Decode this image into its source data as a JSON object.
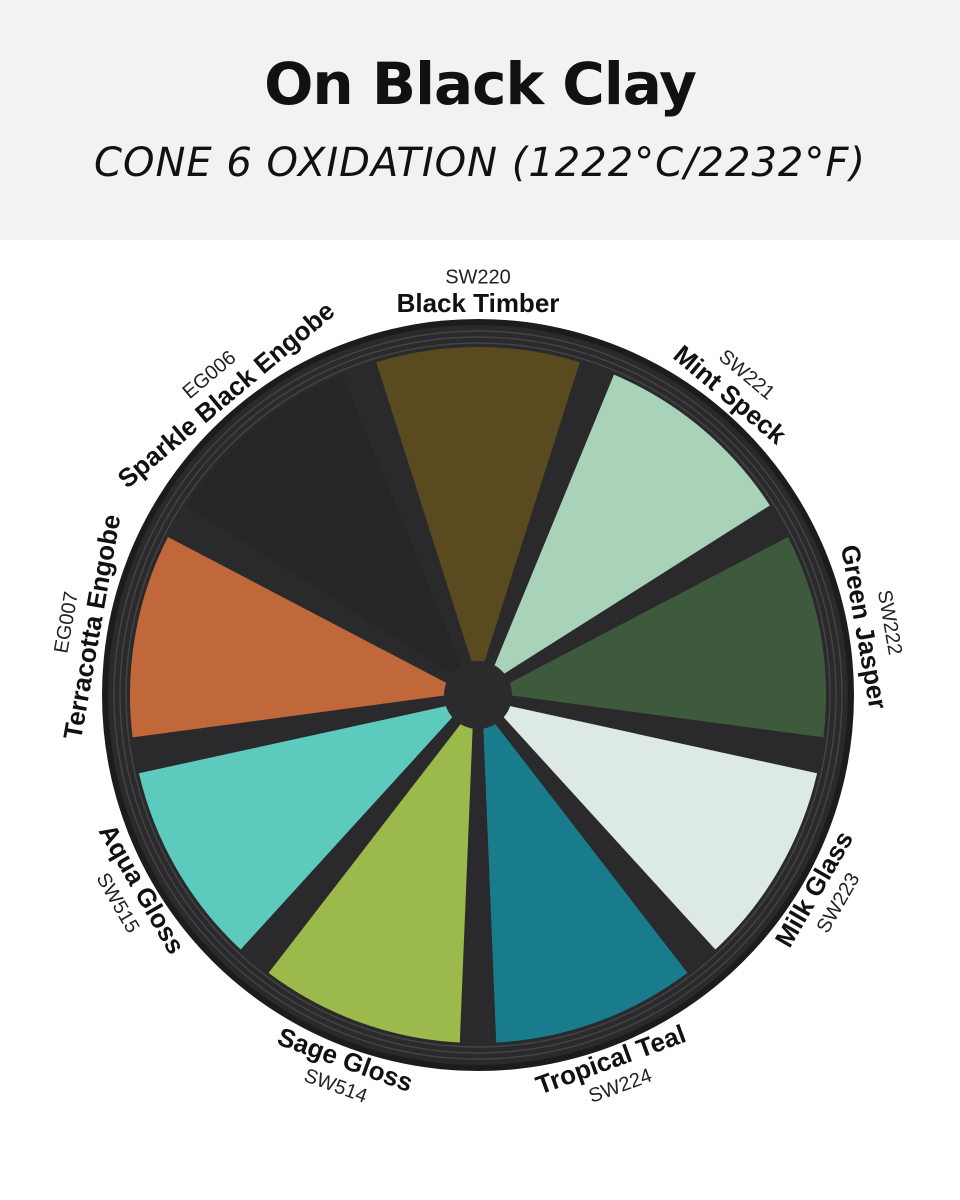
{
  "header": {
    "title": "On Black Clay",
    "subtitle": "CONE 6 OXIDATION (1222°C/2232°F)"
  },
  "plate": {
    "rim_color": "#2a2a2c",
    "glazes": [
      {
        "name": "Black Timber",
        "code": "SW220",
        "color": "#5a4a20"
      },
      {
        "name": "Mint Speck",
        "code": "SW221",
        "color": "#a9d3b9"
      },
      {
        "name": "Green Jasper",
        "code": "SW222",
        "color": "#3e5a3c"
      },
      {
        "name": "Milk Glass",
        "code": "SW223",
        "color": "#dde9e7"
      },
      {
        "name": "Tropical Teal",
        "code": "SW224",
        "color": "#197c8c"
      },
      {
        "name": "Sage Gloss",
        "code": "SW514",
        "color": "#9cba4c"
      },
      {
        "name": "Aqua Gloss",
        "code": "SW515",
        "color": "#5ccabd"
      },
      {
        "name": "Terracotta Engobe",
        "code": "EG007",
        "color": "#c0683a"
      },
      {
        "name": "Sparkle Black Engobe",
        "code": "EG006",
        "color": "#262628"
      }
    ]
  }
}
